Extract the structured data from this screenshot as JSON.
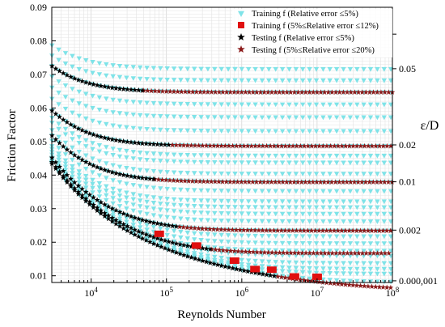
{
  "chart_data": {
    "type": "scatter",
    "title": "",
    "xlabel": "Reynolds Number",
    "ylabel": "Friction Factor",
    "xscale": "log",
    "xlim": [
      3000,
      100000000
    ],
    "ylim": [
      0.008,
      0.09
    ],
    "x_ticks": [
      {
        "value": 10000,
        "base": "10",
        "exp": "4"
      },
      {
        "value": 100000,
        "base": "10",
        "exp": "5"
      },
      {
        "value": 1000000,
        "base": "10",
        "exp": "6"
      },
      {
        "value": 10000000,
        "base": "10",
        "exp": "7"
      },
      {
        "value": 100000000,
        "base": "10",
        "exp": "8"
      }
    ],
    "y_ticks": [
      {
        "value": 0.01,
        "label": "0.01"
      },
      {
        "value": 0.02,
        "label": "0.02"
      },
      {
        "value": 0.03,
        "label": "0.03"
      },
      {
        "value": 0.04,
        "label": "0.04"
      },
      {
        "value": 0.05,
        "label": "0.05"
      },
      {
        "value": 0.06,
        "label": "0.06"
      },
      {
        "value": 0.07,
        "label": "0.07"
      },
      {
        "value": 0.08,
        "label": "0.08"
      },
      {
        "value": 0.09,
        "label": "0.09"
      }
    ],
    "right_axis_title": "ε/D",
    "right_labels": [
      {
        "label": "",
        "y": 0.082
      },
      {
        "label": "0.05",
        "y": 0.0717
      },
      {
        "label": "0.02",
        "y": 0.049
      },
      {
        "label": "0.01",
        "y": 0.038
      },
      {
        "label": "0.002",
        "y": 0.0236
      },
      {
        "label": "0.000,001",
        "y": 0.0085
      }
    ],
    "grid": true,
    "legend_position": "top-right",
    "series": [
      {
        "name": "Training f (Relative error ≤5%)",
        "marker": "triangle-down",
        "color": "#7fe3e8",
        "x": [
          3000,
          5000,
          10000,
          30000,
          100000,
          300000,
          1000000,
          10000000,
          100000000
        ],
        "y": [
          0.079,
          0.076,
          0.074,
          0.072,
          0.0715,
          0.0713,
          0.0712,
          0.0711,
          0.0711
        ]
      },
      {
        "name": "Training f (5%≤Relative error ≤12%)",
        "marker": "square",
        "color": "#e01010",
        "x": [
          80000,
          250000,
          800000,
          1500000,
          2500000,
          5000000,
          10000000
        ],
        "y": [
          0.0225,
          0.019,
          0.0145,
          0.012,
          0.0118,
          0.0098,
          0.0097
        ]
      },
      {
        "name": "Testing f (Relative error ≤5%)",
        "marker": "star",
        "color": "#000000",
        "x": [
          3000,
          5000,
          10000,
          20000,
          50000
        ],
        "y": [
          0.0698,
          0.067,
          0.065,
          0.063,
          0.0618
        ]
      },
      {
        "name": "Testing f (5%≤Relative error ≤20%)",
        "marker": "star",
        "color": "#8b1a1a",
        "x": [
          50000,
          100000,
          1000000,
          10000000,
          100000000
        ],
        "y": [
          0.0615,
          0.0612,
          0.0611,
          0.061,
          0.061
        ]
      }
    ]
  }
}
